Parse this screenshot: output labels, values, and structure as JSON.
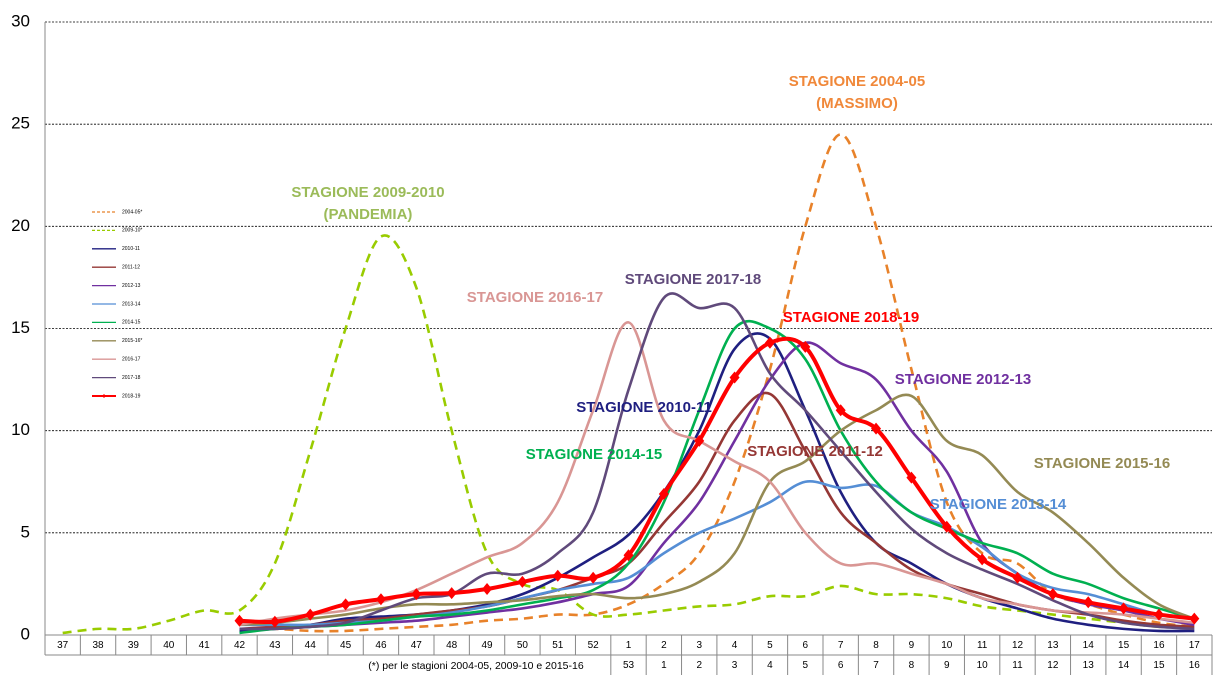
{
  "chart_data": {
    "type": "line",
    "categories": [
      "37",
      "38",
      "39",
      "40",
      "41",
      "42",
      "43",
      "44",
      "45",
      "46",
      "47",
      "48",
      "49",
      "50",
      "51",
      "52",
      "1",
      "2",
      "3",
      "4",
      "5",
      "6",
      "7",
      "8",
      "9",
      "10",
      "11",
      "12",
      "13",
      "14",
      "15",
      "16",
      "17"
    ],
    "categories2": [
      null,
      null,
      null,
      null,
      null,
      null,
      null,
      null,
      null,
      null,
      null,
      null,
      null,
      null,
      null,
      null,
      "53",
      "1",
      "2",
      "3",
      "4",
      "5",
      "6",
      "7",
      "8",
      "9",
      "10",
      "11",
      "12",
      "13",
      "14",
      "15",
      "16"
    ],
    "footnote": "(*) per le stagioni 2004-05, 2009-10 e 2015-16",
    "ylim": [
      0,
      30
    ],
    "yticks": [
      0,
      5,
      10,
      15,
      20,
      25,
      30
    ],
    "grid": true,
    "series": [
      {
        "name": "2004-05*",
        "color": "#e8822a",
        "dash": true,
        "values": [
          null,
          null,
          null,
          null,
          null,
          0.3,
          0.3,
          0.2,
          0.2,
          0.3,
          0.4,
          0.5,
          0.7,
          0.8,
          1.0,
          1.0,
          1.5,
          2.5,
          4,
          7.5,
          13,
          20,
          24.5,
          20,
          13,
          6.5,
          4,
          3.5,
          2,
          1.5,
          1.0,
          0.6,
          0.4
        ]
      },
      {
        "name": "2009-10*",
        "color": "#99cc00",
        "dash": true,
        "values": [
          0.1,
          0.3,
          0.3,
          0.7,
          1.2,
          1.2,
          3.5,
          9,
          15,
          19.5,
          17,
          10,
          4,
          2.5,
          2.2,
          1.0,
          1.0,
          1.2,
          1.4,
          1.5,
          1.9,
          1.9,
          2.4,
          2.0,
          2.0,
          1.8,
          1.4,
          1.2,
          1.0,
          0.8,
          0.6,
          0.4,
          0.4
        ]
      },
      {
        "name": "2010-11",
        "color": "#1f1f80",
        "values": [
          null,
          null,
          null,
          null,
          null,
          0.2,
          0.3,
          0.5,
          0.8,
          0.9,
          1.0,
          1.2,
          1.5,
          2.0,
          2.8,
          3.8,
          4.9,
          7,
          10,
          14,
          14.5,
          11,
          7,
          4.5,
          3.5,
          2.5,
          1.8,
          1.3,
          0.8,
          0.5,
          0.3,
          0.2,
          0.2
        ]
      },
      {
        "name": "2011-12",
        "color": "#953735",
        "values": [
          null,
          null,
          null,
          null,
          null,
          0.3,
          0.4,
          0.5,
          0.7,
          0.8,
          1.0,
          1.2,
          1.4,
          1.8,
          2.2,
          2.8,
          3.5,
          5.5,
          7.5,
          10.5,
          11.8,
          9,
          6,
          4.5,
          3.2,
          2.5,
          2,
          1.5,
          1.2,
          1.0,
          0.7,
          0.5,
          0.4
        ]
      },
      {
        "name": "2012-13",
        "color": "#7030a0",
        "values": [
          null,
          null,
          null,
          null,
          null,
          0.3,
          0.3,
          0.4,
          0.5,
          0.6,
          0.7,
          0.9,
          1.1,
          1.3,
          1.6,
          2.0,
          2.4,
          4.5,
          6.5,
          9.5,
          12.5,
          14.3,
          13.3,
          12.5,
          10,
          8,
          4.5,
          3.0,
          2,
          1.5,
          1.2,
          0.8,
          0.5
        ]
      },
      {
        "name": "2013-14",
        "color": "#558ed5",
        "values": [
          null,
          null,
          null,
          null,
          null,
          0.5,
          0.5,
          0.5,
          0.6,
          0.7,
          0.9,
          1.1,
          1.4,
          1.8,
          2.2,
          2.5,
          2.8,
          4,
          5,
          5.7,
          6.5,
          7.5,
          7.2,
          7.3,
          6,
          5.3,
          4.3,
          3,
          2.3,
          2.0,
          1.5,
          1.0,
          0.8
        ]
      },
      {
        "name": "2014-15",
        "color": "#00b050",
        "values": [
          null,
          null,
          null,
          null,
          null,
          0.1,
          0.3,
          0.4,
          0.5,
          0.7,
          0.9,
          1.0,
          1.2,
          1.5,
          1.8,
          2.2,
          3.5,
          6.5,
          11,
          15,
          15,
          13.5,
          10,
          7.5,
          6,
          5.2,
          4.5,
          4,
          3,
          2.5,
          1.8,
          1.3,
          0.8
        ]
      },
      {
        "name": "2015-16*",
        "color": "#948a54",
        "values": [
          null,
          null,
          null,
          null,
          null,
          0.5,
          0.6,
          0.8,
          1.0,
          1.3,
          1.5,
          1.5,
          1.6,
          1.7,
          1.9,
          2.0,
          1.8,
          2.0,
          2.6,
          4.0,
          7.5,
          8.5,
          10,
          11,
          11.7,
          9.5,
          8.8,
          7,
          6,
          4.5,
          2.8,
          1.5,
          0.8
        ]
      },
      {
        "name": "2016-17",
        "color": "#d99694",
        "values": [
          null,
          null,
          null,
          null,
          null,
          0.5,
          0.8,
          1.0,
          1.2,
          1.6,
          2.2,
          3.0,
          3.8,
          4.5,
          6.5,
          11,
          15.3,
          10.5,
          9.5,
          8.5,
          7.5,
          5,
          3.5,
          3.5,
          3.0,
          2.5,
          1.8,
          1.5,
          1.2,
          1.1,
          1.0,
          0.8,
          0.6
        ]
      },
      {
        "name": "2017-18",
        "color": "#604a7b",
        "values": [
          null,
          null,
          null,
          null,
          null,
          0.3,
          0.3,
          0.4,
          0.6,
          1.2,
          1.8,
          2.0,
          3.0,
          3.0,
          4.0,
          6.0,
          12,
          16.5,
          16,
          16,
          12.8,
          11,
          9,
          7,
          5.2,
          4,
          3.2,
          2.5,
          1.7,
          1.0,
          0.6,
          0.4,
          0.3
        ]
      },
      {
        "name": "2018-19",
        "color": "#ff0000",
        "marker": "diamond",
        "values": [
          null,
          null,
          null,
          null,
          null,
          0.7,
          0.65,
          1.0,
          1.5,
          1.75,
          2.0,
          2.05,
          2.25,
          2.6,
          2.9,
          2.8,
          3.9,
          6.9,
          9.5,
          12.6,
          14.3,
          14.1,
          11,
          10.1,
          7.7,
          5.3,
          3.7,
          2.8,
          2.0,
          1.6,
          1.3,
          1.0,
          0.8
        ]
      }
    ],
    "annotations": [
      {
        "lines": [
          "STAGIONE 2004-05",
          "(MASSIMO)"
        ],
        "color": "#f0883a"
      },
      {
        "lines": [
          "STAGIONE 2009-2010",
          "(PANDEMIA)"
        ],
        "color": "#9bbb59"
      },
      {
        "lines": [
          "STAGIONE 2016-17"
        ],
        "color": "#d99694"
      },
      {
        "lines": [
          "STAGIONE 2017-18"
        ],
        "color": "#604a7b"
      },
      {
        "lines": [
          "STAGIONE 2018-19"
        ],
        "color": "#ff0000"
      },
      {
        "lines": [
          "STAGIONE 2012-13"
        ],
        "color": "#7030a0"
      },
      {
        "lines": [
          "STAGIONE 2010-11"
        ],
        "color": "#1f1f80"
      },
      {
        "lines": [
          "STAGIONE 2014-15"
        ],
        "color": "#00b050"
      },
      {
        "lines": [
          "STAGIONE 2011-12"
        ],
        "color": "#953735"
      },
      {
        "lines": [
          "STAGIONE 2015-16"
        ],
        "color": "#948a54"
      },
      {
        "lines": [
          "STAGIONE 2013-14"
        ],
        "color": "#558ed5"
      }
    ]
  }
}
